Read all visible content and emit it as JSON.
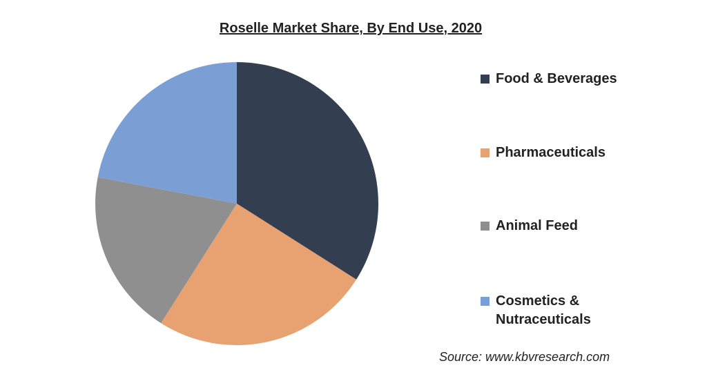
{
  "chart_data": {
    "type": "pie",
    "title": "Roselle Market Share, By End Use, 2020",
    "categories": [
      "Food & Beverages",
      "Pharmaceuticals",
      "Animal Feed",
      "Cosmetics & Nutraceuticals"
    ],
    "values": [
      34,
      25,
      19,
      22
    ],
    "colors": [
      "#333f50",
      "#e8a272",
      "#8f8f8f",
      "#7b9fd5"
    ],
    "source": "Source: www.kbvresearch.com"
  }
}
